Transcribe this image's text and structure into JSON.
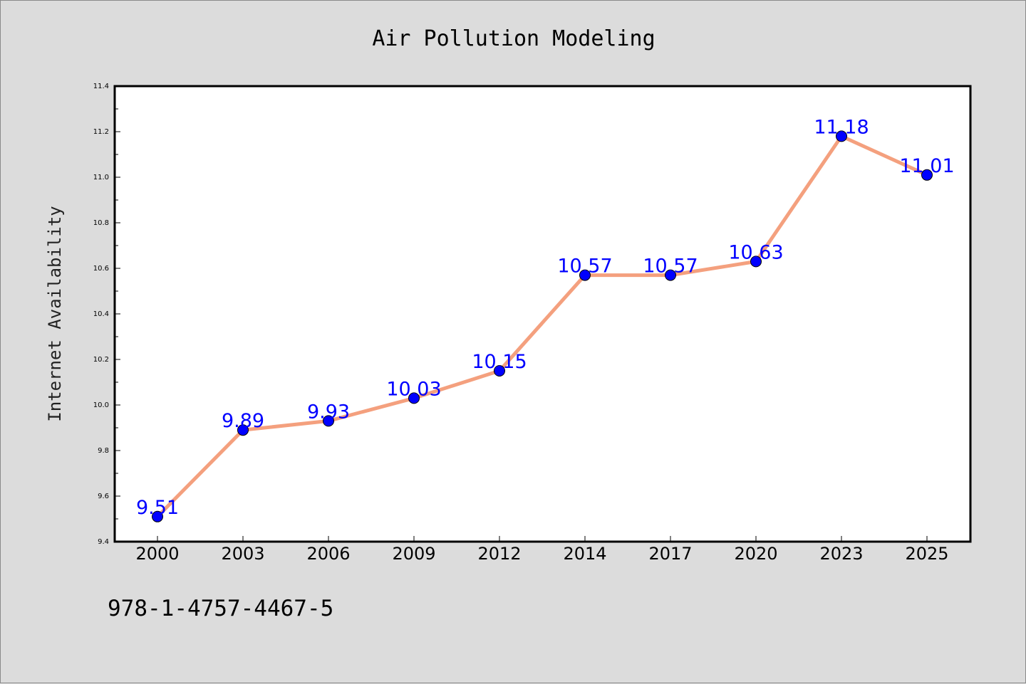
{
  "footer_text": "978-1-4757-4467-5",
  "chart_data": {
    "type": "line",
    "title": "Air Pollution Modeling",
    "xlabel": "",
    "ylabel": "Internet Availability",
    "categories": [
      "2000",
      "2003",
      "2006",
      "2009",
      "2012",
      "2014",
      "2017",
      "2020",
      "2023",
      "2025"
    ],
    "values": [
      9.51,
      9.89,
      9.93,
      10.03,
      10.15,
      10.57,
      10.57,
      10.63,
      11.18,
      11.01
    ],
    "data_labels": [
      "9.51",
      "9.89",
      "9.93",
      "10.03",
      "10.15",
      "10.57",
      "10.57",
      "10.63",
      "11.18",
      "11.01"
    ],
    "ylim": [
      9.4,
      11.4
    ],
    "yticks": [
      "9.4",
      "9.6",
      "9.8",
      "10.0",
      "10.2",
      "10.4",
      "10.6",
      "10.8",
      "11.0",
      "11.2",
      "11.4"
    ],
    "grid": false,
    "legend": false,
    "colors": {
      "line": "#f4a07e",
      "marker": "#0000ff",
      "label": "#0000ff",
      "plot_bg": "#ffffff",
      "page_bg": "#dcdcdc"
    }
  }
}
